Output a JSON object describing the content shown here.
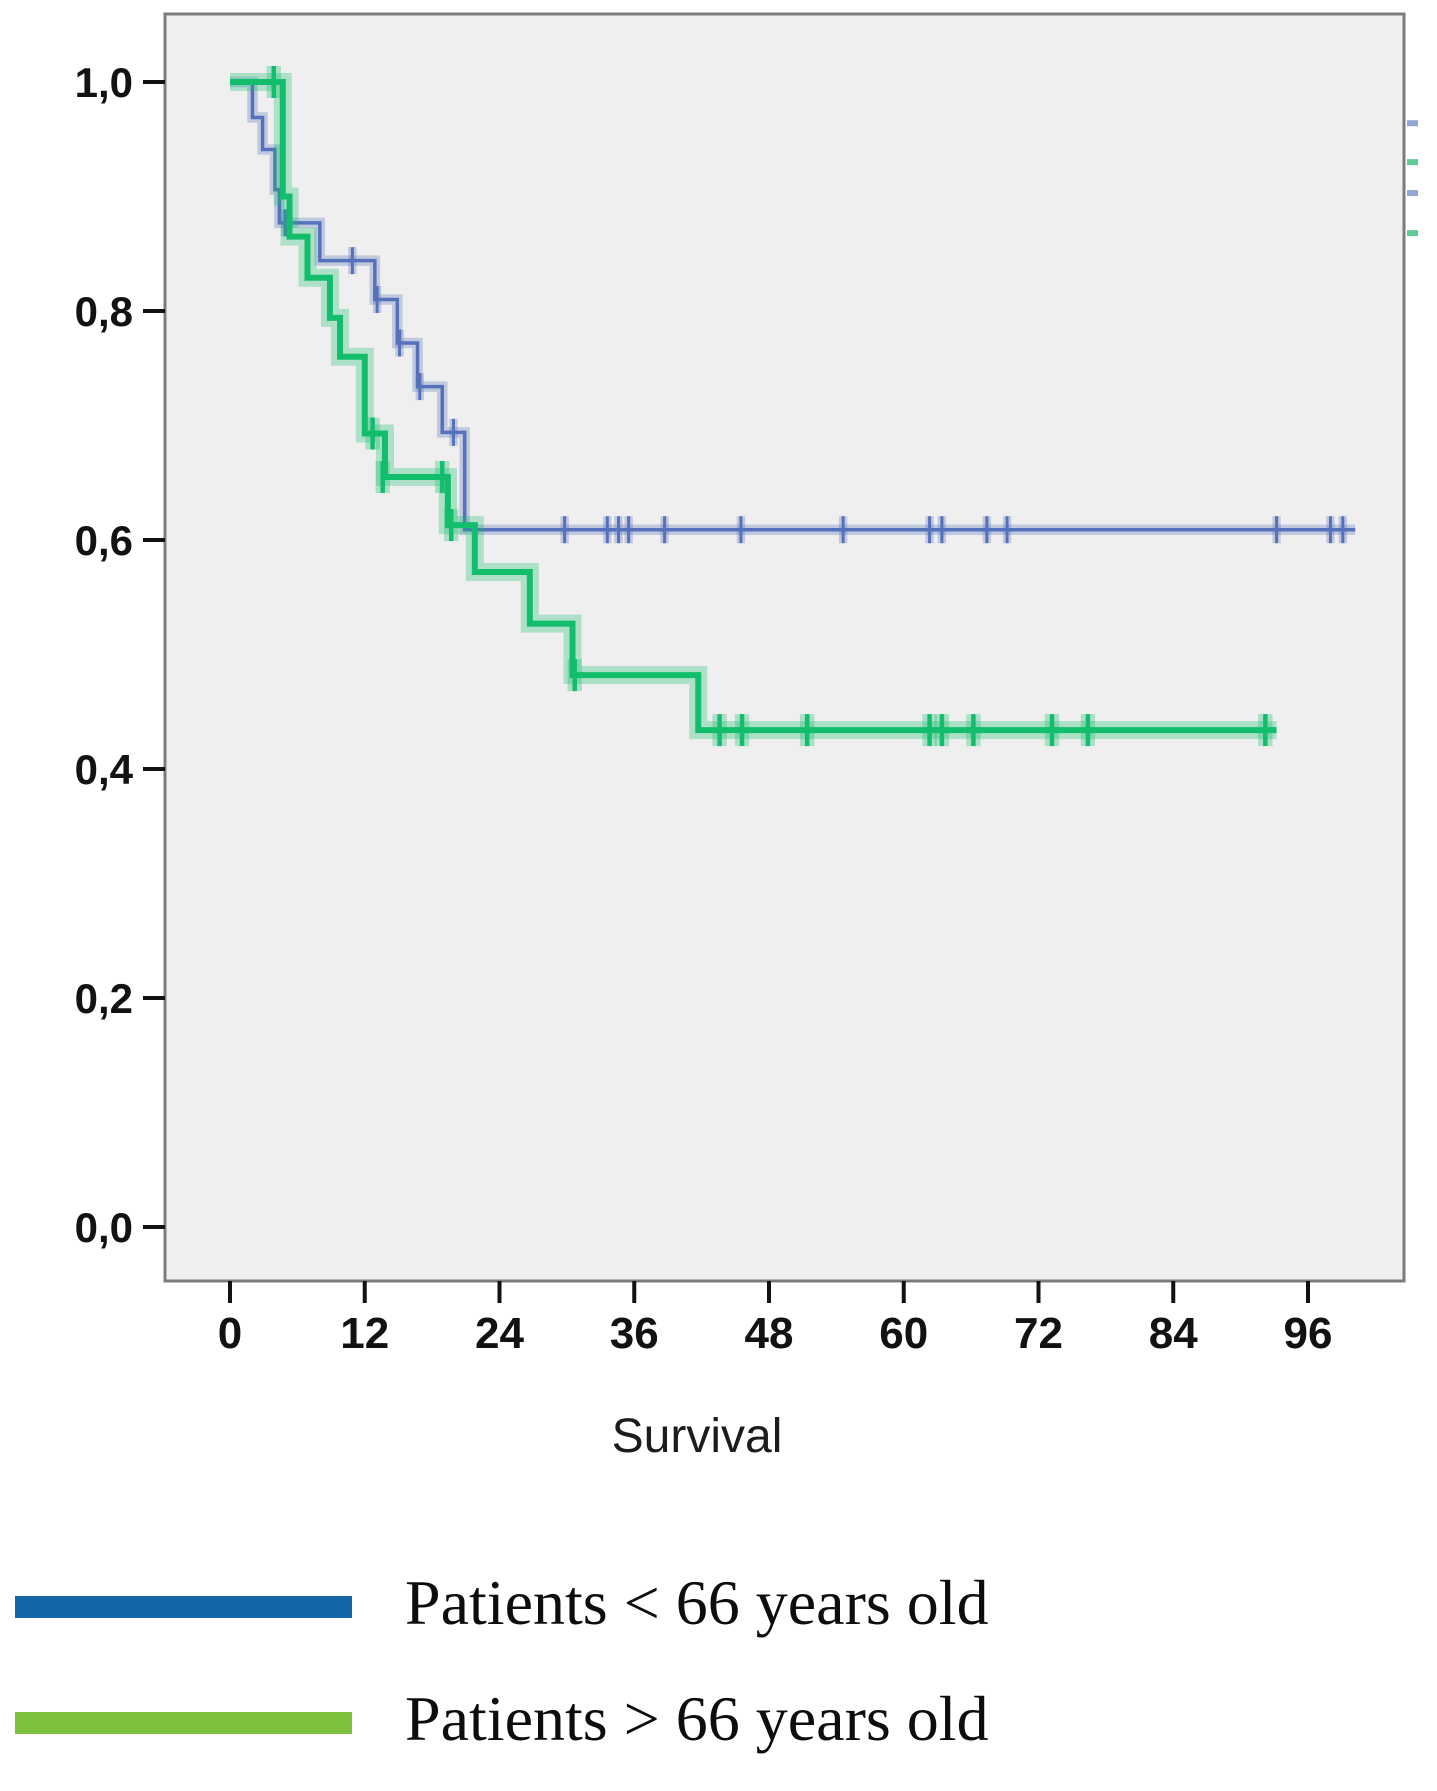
{
  "chart_data": {
    "type": "line",
    "subtype": "kaplan-meier-step",
    "title": "",
    "xlabel": "Survival",
    "ylabel": "",
    "grid": false,
    "legend_position": "below-chart",
    "x_ticks": [
      0,
      12,
      24,
      36,
      48,
      60,
      72,
      84,
      96
    ],
    "y_ticks": [
      {
        "value": 0.0,
        "label": "0,0"
      },
      {
        "value": 0.2,
        "label": "0,2"
      },
      {
        "value": 0.4,
        "label": "0,4"
      },
      {
        "value": 0.6,
        "label": "0,6"
      },
      {
        "value": 0.8,
        "label": "0,8"
      },
      {
        "value": 1.0,
        "label": "1,0"
      }
    ],
    "xlim": [
      -5.8,
      104.5
    ],
    "ylim": [
      -0.047,
      1.06
    ],
    "panel_bg": "#efefef",
    "panel_border": "#7c7c7c",
    "series": [
      {
        "name": "Patients < 66 years old",
        "line_color": "#5571bb",
        "legend_color": "#1565a9",
        "line_width": 3.5,
        "start": [
          0,
          1.0
        ],
        "steps": [
          [
            2.0,
            0.969
          ],
          [
            2.9,
            0.941
          ],
          [
            4.0,
            0.906
          ],
          [
            4.4,
            0.877
          ],
          [
            8.0,
            0.844
          ],
          [
            12.9,
            0.81
          ],
          [
            14.9,
            0.772
          ],
          [
            16.7,
            0.734
          ],
          [
            18.9,
            0.694
          ],
          [
            20.9,
            0.609
          ]
        ],
        "end_time": 100.2,
        "censors": [
          [
            4.9,
            0.877
          ],
          [
            10.9,
            0.844
          ],
          [
            13.1,
            0.81
          ],
          [
            15.1,
            0.772
          ],
          [
            16.9,
            0.734
          ],
          [
            19.9,
            0.694
          ],
          [
            29.8,
            0.609
          ],
          [
            33.6,
            0.609
          ],
          [
            34.6,
            0.609
          ],
          [
            35.5,
            0.609
          ],
          [
            38.7,
            0.609
          ],
          [
            45.5,
            0.609
          ],
          [
            54.6,
            0.609
          ],
          [
            62.3,
            0.609
          ],
          [
            63.4,
            0.609
          ],
          [
            67.4,
            0.609
          ],
          [
            69.2,
            0.609
          ],
          [
            93.2,
            0.609
          ],
          [
            98.0,
            0.609
          ],
          [
            99.1,
            0.609
          ]
        ]
      },
      {
        "name": "Patients > 66 years old",
        "line_color": "#12bd6b",
        "legend_color": "#7dc23c",
        "line_width": 6,
        "start": [
          0,
          1.0
        ],
        "steps": [
          [
            4.7,
            0.9
          ],
          [
            5.3,
            0.865
          ],
          [
            6.9,
            0.829
          ],
          [
            8.9,
            0.794
          ],
          [
            9.8,
            0.76
          ],
          [
            12.0,
            0.693
          ],
          [
            13.8,
            0.655
          ],
          [
            19.4,
            0.613
          ],
          [
            21.8,
            0.572
          ],
          [
            26.7,
            0.527
          ],
          [
            30.5,
            0.482
          ],
          [
            41.7,
            0.434
          ]
        ],
        "end_time": 93.2,
        "censors": [
          [
            3.9,
            1.0
          ],
          [
            12.7,
            0.693
          ],
          [
            13.6,
            0.655
          ],
          [
            18.9,
            0.655
          ],
          [
            19.7,
            0.613
          ],
          [
            30.7,
            0.482
          ],
          [
            43.6,
            0.434
          ],
          [
            45.6,
            0.434
          ],
          [
            51.4,
            0.434
          ],
          [
            62.3,
            0.434
          ],
          [
            63.4,
            0.434
          ],
          [
            66.2,
            0.434
          ],
          [
            73.2,
            0.434
          ],
          [
            76.4,
            0.434
          ],
          [
            92.2,
            0.434
          ]
        ]
      }
    ],
    "edge_marks": [
      {
        "color": "#93a5d4",
        "value": 0.964
      },
      {
        "color": "#5fcb96",
        "value": 0.93
      },
      {
        "color": "#93a5d4",
        "value": 0.903
      },
      {
        "color": "#5fcb96",
        "value": 0.868
      }
    ]
  },
  "legend": {
    "items": [
      {
        "label": "Patients < 66 years old",
        "color": "#1565a9"
      },
      {
        "label": "Patients > 66 years old",
        "color": "#7dc23c"
      }
    ]
  }
}
